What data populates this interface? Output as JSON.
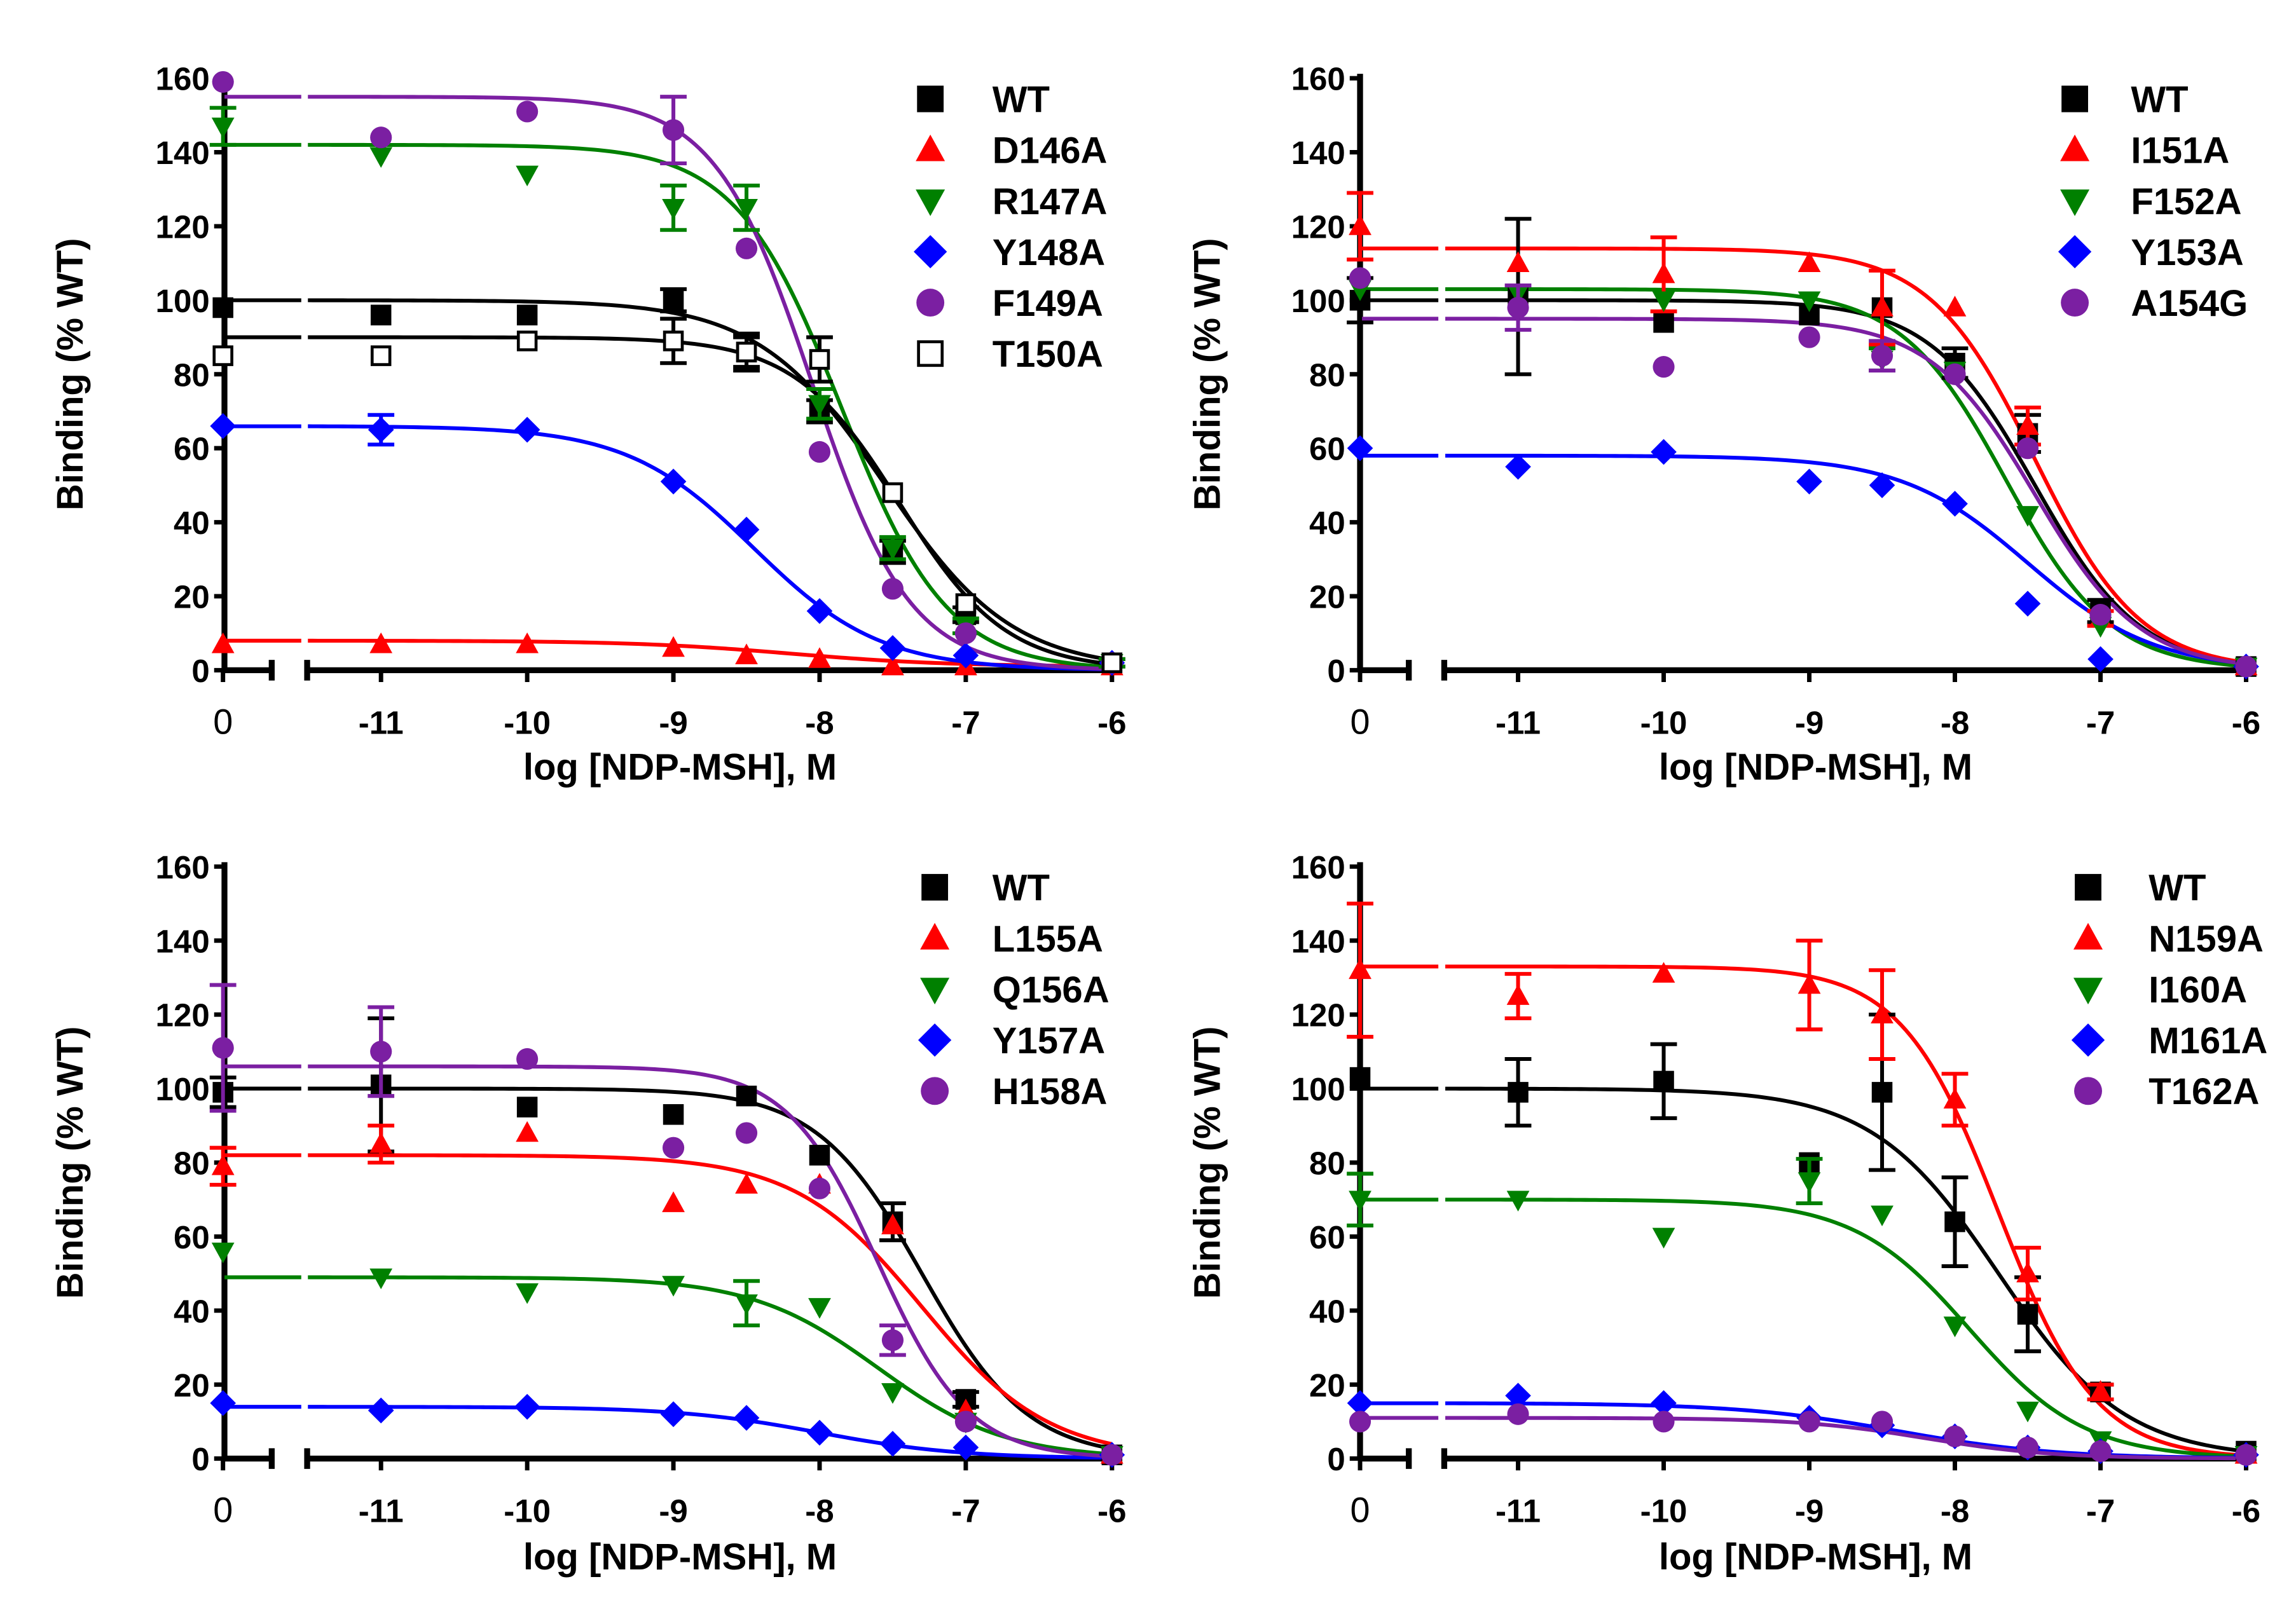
{
  "figure": {
    "description_panels": 4
  },
  "chart_data": [
    {
      "type": "scatter",
      "xlabel": "log [NDP-MSH], M",
      "ylabel": "Binding (% WT)",
      "ylim": [
        0,
        160
      ],
      "yticks": [
        "0",
        "20",
        "40",
        "60",
        "80",
        "100",
        "120",
        "140",
        "160"
      ],
      "xticks": [
        "-11",
        "-10",
        "-9",
        "-8",
        "-7",
        "-6"
      ],
      "zero_tick_label": "0",
      "x": [
        0,
        -11,
        -10,
        -9,
        -8.5,
        -8,
        -7.5,
        -7,
        -6
      ],
      "series": [
        {
          "name": "WT",
          "color": "#000000",
          "marker": "square",
          "values": [
            98,
            96,
            96,
            100,
            86,
            70,
            32,
            15,
            2
          ],
          "errors": [
            0,
            0,
            0,
            3,
            5,
            3,
            3,
            2,
            1
          ],
          "fit": {
            "top": 100,
            "bottom": 0,
            "logEC50": -7.55,
            "hill": 1.0
          }
        },
        {
          "name": "D146A",
          "color": "#ff0000",
          "marker": "triangle-up",
          "values": [
            7,
            7,
            7,
            6,
            4,
            3,
            1,
            1,
            1
          ],
          "errors": [
            0,
            0,
            0,
            0,
            0,
            0,
            0,
            0,
            0
          ],
          "fit": {
            "top": 8,
            "bottom": 1,
            "logEC50": -8.2,
            "hill": 0.8
          }
        },
        {
          "name": "R147A",
          "color": "#008000",
          "marker": "triangle-down",
          "values": [
            147,
            139,
            134,
            125,
            125,
            72,
            33,
            12,
            2
          ],
          "errors": [
            5,
            0,
            0,
            6,
            6,
            4,
            3,
            2,
            1
          ],
          "fit": {
            "top": 142,
            "bottom": 0,
            "logEC50": -7.85,
            "hill": 1.2
          }
        },
        {
          "name": "Y148A",
          "color": "#0000ff",
          "marker": "diamond",
          "values": [
            66,
            65,
            65,
            51,
            38,
            16,
            6,
            4,
            2
          ],
          "errors": [
            0,
            4,
            0,
            0,
            0,
            0,
            0,
            0,
            0
          ],
          "fit": {
            "top": 66,
            "bottom": 0,
            "logEC50": -8.45,
            "hill": 1.0
          }
        },
        {
          "name": "F149A",
          "color": "#7b1fa2",
          "marker": "circle",
          "values": [
            159,
            144,
            151,
            146,
            114,
            59,
            22,
            10,
            2
          ],
          "errors": [
            0,
            0,
            0,
            9,
            0,
            0,
            0,
            0,
            0
          ],
          "fit": {
            "top": 155,
            "bottom": 0,
            "logEC50": -8.05,
            "hill": 1.3
          }
        },
        {
          "name": "T150A",
          "color": "#000000",
          "marker": "square-open",
          "values": [
            85,
            85,
            89,
            89,
            86,
            84,
            48,
            18,
            2
          ],
          "errors": [
            0,
            0,
            0,
            6,
            4,
            6,
            0,
            0,
            0
          ],
          "fit": {
            "top": 90,
            "bottom": 0,
            "logEC50": -7.45,
            "hill": 1.2
          }
        }
      ]
    },
    {
      "type": "scatter",
      "xlabel": "log [NDP-MSH], M",
      "ylabel": "Binding (% WT)",
      "ylim": [
        0,
        160
      ],
      "yticks": [
        "0",
        "20",
        "40",
        "60",
        "80",
        "100",
        "120",
        "140",
        "160"
      ],
      "xticks": [
        "-11",
        "-10",
        "-9",
        "-8",
        "-7",
        "-6"
      ],
      "zero_tick_label": "0",
      "x": [
        0,
        -11,
        -10,
        -9,
        -8.5,
        -8,
        -7.5,
        -7,
        -6
      ],
      "series": [
        {
          "name": "WT",
          "color": "#000000",
          "marker": "square",
          "values": [
            100,
            101,
            94,
            96,
            98,
            83,
            64,
            16,
            1
          ],
          "errors": [
            6,
            21,
            0,
            0,
            0,
            4,
            5,
            3,
            0
          ],
          "fit": {
            "top": 100,
            "bottom": 0,
            "logEC50": -7.45,
            "hill": 1.2
          }
        },
        {
          "name": "I151A",
          "color": "#ff0000",
          "marker": "triangle-up",
          "values": [
            120,
            110,
            107,
            110,
            98,
            98,
            66,
            14,
            1
          ],
          "errors": [
            9,
            0,
            10,
            0,
            10,
            0,
            5,
            2,
            0
          ],
          "fit": {
            "top": 114,
            "bottom": 0,
            "logEC50": -7.45,
            "hill": 1.2
          }
        },
        {
          "name": "F152A",
          "color": "#008000",
          "marker": "triangle-down",
          "values": [
            103,
            102,
            100,
            100,
            84,
            81,
            42,
            12,
            1
          ],
          "errors": [
            0,
            0,
            0,
            0,
            3,
            0,
            0,
            0,
            0
          ],
          "fit": {
            "top": 103,
            "bottom": 0,
            "logEC50": -7.65,
            "hill": 1.2
          }
        },
        {
          "name": "Y153A",
          "color": "#0000ff",
          "marker": "diamond",
          "values": [
            60,
            55,
            59,
            51,
            50,
            45,
            18,
            3,
            1
          ],
          "errors": [
            0,
            0,
            0,
            0,
            0,
            0,
            0,
            0,
            0
          ],
          "fit": {
            "top": 58,
            "bottom": 0,
            "logEC50": -7.5,
            "hill": 1.0
          }
        },
        {
          "name": "A154G",
          "color": "#7b1fa2",
          "marker": "circle",
          "values": [
            106,
            98,
            82,
            90,
            85,
            80,
            60,
            15,
            1
          ],
          "errors": [
            0,
            6,
            0,
            0,
            4,
            0,
            0,
            0,
            0
          ],
          "fit": {
            "top": 95,
            "bottom": 0,
            "logEC50": -7.45,
            "hill": 1.2
          }
        }
      ]
    },
    {
      "type": "scatter",
      "xlabel": "log [NDP-MSH], M",
      "ylabel": "Binding (% WT)",
      "ylim": [
        0,
        160
      ],
      "yticks": [
        "0",
        "20",
        "40",
        "60",
        "80",
        "100",
        "120",
        "140",
        "160"
      ],
      "xticks": [
        "-11",
        "-10",
        "-9",
        "-8",
        "-7",
        "-6"
      ],
      "zero_tick_label": "0",
      "x": [
        0,
        -11,
        -10,
        -9,
        -8.5,
        -8,
        -7.5,
        -7,
        -6
      ],
      "series": [
        {
          "name": "WT",
          "color": "#000000",
          "marker": "square",
          "values": [
            99,
            101,
            95,
            93,
            98,
            82,
            64,
            16,
            1
          ],
          "errors": [
            4,
            18,
            0,
            0,
            0,
            0,
            5,
            2,
            0
          ],
          "fit": {
            "top": 100,
            "bottom": 0,
            "logEC50": -7.3,
            "hill": 1.2
          }
        },
        {
          "name": "L155A",
          "color": "#ff0000",
          "marker": "triangle-up",
          "values": [
            79,
            85,
            88,
            69,
            74,
            74,
            63,
            13,
            1
          ],
          "errors": [
            5,
            5,
            0,
            0,
            0,
            0,
            0,
            0,
            0
          ],
          "fit": {
            "top": 82,
            "bottom": 0,
            "logEC50": -7.3,
            "hill": 1.0
          }
        },
        {
          "name": "Q156A",
          "color": "#008000",
          "marker": "triangle-down",
          "values": [
            56,
            49,
            45,
            47,
            42,
            41,
            18,
            10,
            1
          ],
          "errors": [
            0,
            0,
            0,
            0,
            6,
            0,
            0,
            0,
            0
          ],
          "fit": {
            "top": 49,
            "bottom": 0,
            "logEC50": -7.6,
            "hill": 1.0
          }
        },
        {
          "name": "Y157A",
          "color": "#0000ff",
          "marker": "diamond",
          "values": [
            15,
            13,
            14,
            12,
            11,
            7,
            4,
            3,
            1
          ],
          "errors": [
            0,
            0,
            0,
            0,
            0,
            0,
            0,
            0,
            0
          ],
          "fit": {
            "top": 14,
            "bottom": 0,
            "logEC50": -8.0,
            "hill": 0.9
          }
        },
        {
          "name": "H158A",
          "color": "#7b1fa2",
          "marker": "circle",
          "values": [
            111,
            110,
            108,
            84,
            88,
            73,
            32,
            10,
            1
          ],
          "errors": [
            17,
            12,
            0,
            0,
            0,
            0,
            4,
            0,
            0
          ],
          "fit": {
            "top": 106,
            "bottom": 0,
            "logEC50": -7.6,
            "hill": 1.4
          }
        }
      ]
    },
    {
      "type": "scatter",
      "xlabel": "log [NDP-MSH], M",
      "ylabel": "Binding (% WT)",
      "ylim": [
        0,
        160
      ],
      "yticks": [
        "0",
        "20",
        "40",
        "60",
        "80",
        "100",
        "120",
        "140",
        "160"
      ],
      "xticks": [
        "-11",
        "-10",
        "-9",
        "-8",
        "-7",
        "-6"
      ],
      "zero_tick_label": "0",
      "x": [
        0,
        -11,
        -10,
        -9,
        -8.5,
        -8,
        -7.5,
        -7,
        -6
      ],
      "series": [
        {
          "name": "WT",
          "color": "#000000",
          "marker": "square",
          "values": [
            103,
            99,
            102,
            80,
            99,
            64,
            39,
            18,
            2
          ],
          "errors": [
            0,
            9,
            10,
            0,
            21,
            12,
            10,
            2,
            0
          ],
          "fit": {
            "top": 100,
            "bottom": 0,
            "logEC50": -7.7,
            "hill": 1.0
          }
        },
        {
          "name": "N159A",
          "color": "#ff0000",
          "marker": "triangle-up",
          "values": [
            132,
            125,
            131,
            128,
            120,
            97,
            50,
            18,
            1
          ],
          "errors": [
            18,
            6,
            0,
            12,
            12,
            7,
            7,
            2,
            0
          ],
          "fit": {
            "top": 133,
            "bottom": 0,
            "logEC50": -7.7,
            "hill": 1.3
          }
        },
        {
          "name": "I160A",
          "color": "#008000",
          "marker": "triangle-down",
          "values": [
            70,
            70,
            60,
            75,
            66,
            36,
            13,
            5,
            1
          ],
          "errors": [
            7,
            0,
            0,
            6,
            0,
            0,
            0,
            0,
            0
          ],
          "fit": {
            "top": 70,
            "bottom": 0,
            "logEC50": -7.9,
            "hill": 1.1
          }
        },
        {
          "name": "M161A",
          "color": "#0000ff",
          "marker": "diamond",
          "values": [
            15,
            17,
            15,
            11,
            9,
            6,
            3,
            2,
            1
          ],
          "errors": [
            0,
            0,
            0,
            0,
            0,
            0,
            0,
            0,
            0
          ],
          "fit": {
            "top": 15,
            "bottom": 0,
            "logEC50": -8.4,
            "hill": 0.8
          }
        },
        {
          "name": "T162A",
          "color": "#7b1fa2",
          "marker": "circle",
          "values": [
            10,
            12,
            10,
            10,
            10,
            6,
            3,
            2,
            1
          ],
          "errors": [
            0,
            0,
            0,
            0,
            0,
            0,
            0,
            0,
            0
          ],
          "fit": {
            "top": 11,
            "bottom": 0,
            "logEC50": -8.2,
            "hill": 1.0
          }
        }
      ]
    }
  ]
}
